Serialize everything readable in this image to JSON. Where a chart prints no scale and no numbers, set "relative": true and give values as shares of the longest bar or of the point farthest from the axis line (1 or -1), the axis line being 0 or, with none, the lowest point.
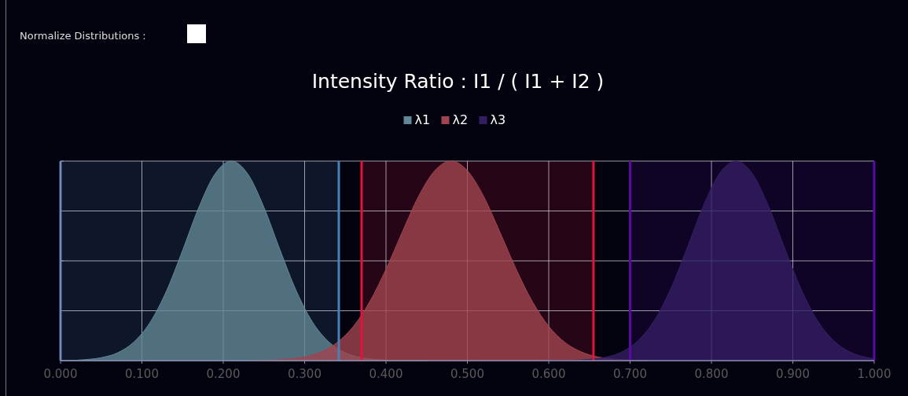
{
  "chart_data": {
    "type": "area",
    "title": "Intensity Ratio : I1 / ( I1 + I2 )",
    "annotations": [
      "Normalize Distributions :"
    ],
    "relative": true,
    "legend": "top",
    "grid": true,
    "xlim": [
      0,
      1
    ],
    "xticks": [
      {
        "value": 0,
        "label": "0.000"
      },
      {
        "value": 0.1,
        "label": "0.100"
      },
      {
        "value": 0.2,
        "label": "0.200"
      },
      {
        "value": 0.3,
        "label": "0.300"
      },
      {
        "value": 0.4,
        "label": "0.400"
      },
      {
        "value": 0.5,
        "label": "0.500"
      },
      {
        "value": 0.6,
        "label": "0.600"
      },
      {
        "value": 0.7,
        "label": "0.700"
      },
      {
        "value": 0.8,
        "label": "0.800"
      },
      {
        "value": 0.9,
        "label": "0.900"
      },
      {
        "value": 1,
        "label": "1.000"
      }
    ],
    "series": [
      {
        "name": "λ1",
        "color": "#628796",
        "x": [
          0,
          0.01,
          0.03,
          0.05,
          0.07,
          0.09,
          0.11,
          0.13,
          0.15,
          0.17,
          0.19,
          0.21,
          0.23,
          0.25,
          0.27,
          0.29,
          0.31,
          0.33,
          0.35,
          0.37,
          0.39,
          0.41,
          0.45
        ],
        "values": [
          0.001,
          0.001,
          0.005,
          0.015,
          0.039,
          0.093,
          0.191,
          0.347,
          0.552,
          0.768,
          0.936,
          1,
          0.936,
          0.768,
          0.552,
          0.347,
          0.191,
          0.093,
          0.039,
          0.015,
          0.005,
          0.001,
          0
        ]
      },
      {
        "name": "λ2",
        "color": "#a0454f",
        "x": [
          0.24,
          0.26,
          0.28,
          0.3,
          0.32,
          0.34,
          0.36,
          0.38,
          0.4,
          0.42,
          0.44,
          0.46,
          0.48,
          0.5,
          0.52,
          0.54,
          0.56,
          0.58,
          0.6,
          0.62,
          0.64,
          0.66,
          0.68,
          0.7,
          0.72
        ],
        "values": [
          0.001,
          0.003,
          0.008,
          0.019,
          0.044,
          0.091,
          0.172,
          0.295,
          0.458,
          0.644,
          0.823,
          0.952,
          1,
          0.952,
          0.823,
          0.644,
          0.458,
          0.295,
          0.172,
          0.091,
          0.044,
          0.019,
          0.008,
          0.003,
          0.001
        ]
      },
      {
        "name": "λ3",
        "color": "#331e63",
        "x": [
          0.6,
          0.63,
          0.65,
          0.67,
          0.69,
          0.71,
          0.73,
          0.75,
          0.77,
          0.79,
          0.81,
          0.83,
          0.85,
          0.87,
          0.89,
          0.91,
          0.93,
          0.95,
          0.97,
          0.99,
          1
        ],
        "values": [
          0,
          0.002,
          0.006,
          0.017,
          0.044,
          0.101,
          0.203,
          0.36,
          0.563,
          0.775,
          0.938,
          1,
          0.938,
          0.775,
          0.563,
          0.36,
          0.203,
          0.101,
          0.044,
          0.017,
          0.01
        ]
      }
    ],
    "bands": [
      {
        "axis": "x",
        "from": 0,
        "to": 0.342,
        "color": "#4a80b8"
      },
      {
        "axis": "x",
        "from": 0.37,
        "to": 0.655,
        "color": "#e0143c"
      },
      {
        "axis": "x",
        "from": 0.7,
        "to": 1,
        "color": "#5a0aa0"
      }
    ],
    "ref_lines": [
      {
        "axis": "x",
        "value": 0,
        "color": "#4a80b8"
      },
      {
        "axis": "x",
        "value": 0.342,
        "color": "#4a80b8"
      },
      {
        "axis": "x",
        "value": 0.37,
        "color": "#e0143c"
      },
      {
        "axis": "x",
        "value": 0.655,
        "color": "#e0143c"
      },
      {
        "axis": "x",
        "value": 0.7,
        "color": "#5a0aa0"
      },
      {
        "axis": "x",
        "value": 1,
        "color": "#5a0aa0"
      }
    ]
  }
}
